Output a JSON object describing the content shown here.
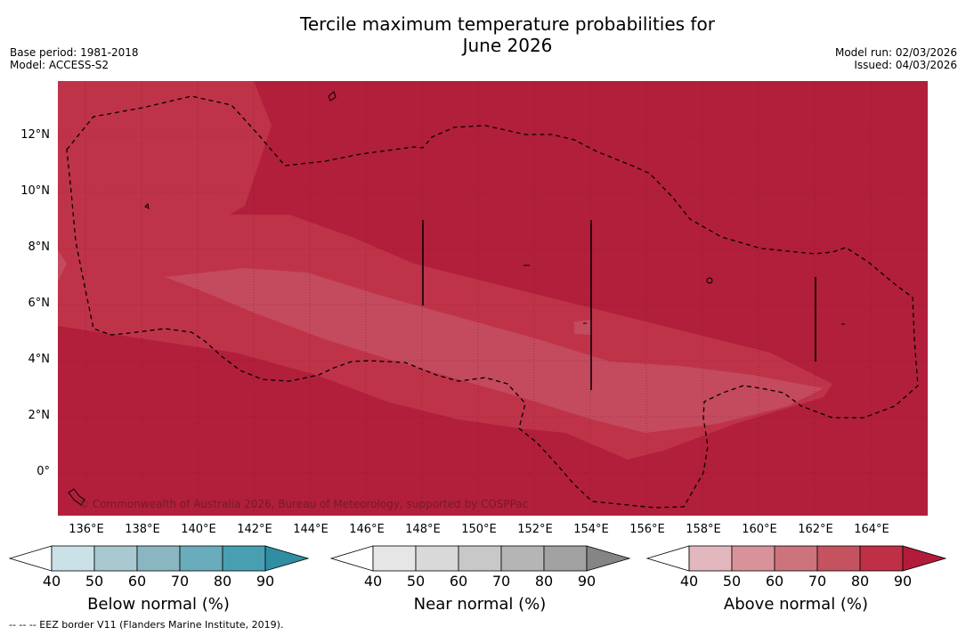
{
  "title": {
    "line1": "Tercile maximum temperature probabilities for",
    "line2": "June 2026"
  },
  "meta": {
    "base_period": "Base period: 1981-2018",
    "model": "Model: ACCESS-S2",
    "model_run": "Model run: 02/03/2026",
    "issued": "Issued: 04/03/2026"
  },
  "map": {
    "lat_ticks": [
      "12°N",
      "10°N",
      "8°N",
      "6°N",
      "4°N",
      "2°N",
      "0°"
    ],
    "lon_ticks": [
      "136°E",
      "138°E",
      "140°E",
      "142°E",
      "144°E",
      "146°E",
      "148°E",
      "150°E",
      "152°E",
      "154°E",
      "156°E",
      "158°E",
      "160°E",
      "162°E",
      "164°E"
    ],
    "copyright": "© Commonwealth of Australia 2026, Bureau of Meteorology, supported by COSPPac",
    "background_color": "#b21f3b"
  },
  "colorbars": [
    {
      "title": "Below normal (%)",
      "ticks": [
        "40",
        "50",
        "60",
        "70",
        "80",
        "90"
      ],
      "colors": [
        "#ffffff",
        "#c9e1e7",
        "#a9c8cf",
        "#8ab6c2",
        "#69acbb",
        "#489fb1",
        "#2f8ea2"
      ]
    },
    {
      "title": "Near normal (%)",
      "ticks": [
        "40",
        "50",
        "60",
        "70",
        "80",
        "90"
      ],
      "colors": [
        "#ffffff",
        "#e6e6e6",
        "#d9d9d9",
        "#c8c8c8",
        "#b5b5b5",
        "#a2a2a2",
        "#858585"
      ]
    },
    {
      "title": "Above normal (%)",
      "ticks": [
        "40",
        "50",
        "60",
        "70",
        "80",
        "90"
      ],
      "colors": [
        "#ffffff",
        "#e2b8be",
        "#d99299",
        "#cc737c",
        "#c4535f",
        "#bf2f45",
        "#b21b39"
      ]
    }
  ],
  "footnote": "--  --  -- EEZ border V11 (Flanders Marine Institute, 2019)."
}
